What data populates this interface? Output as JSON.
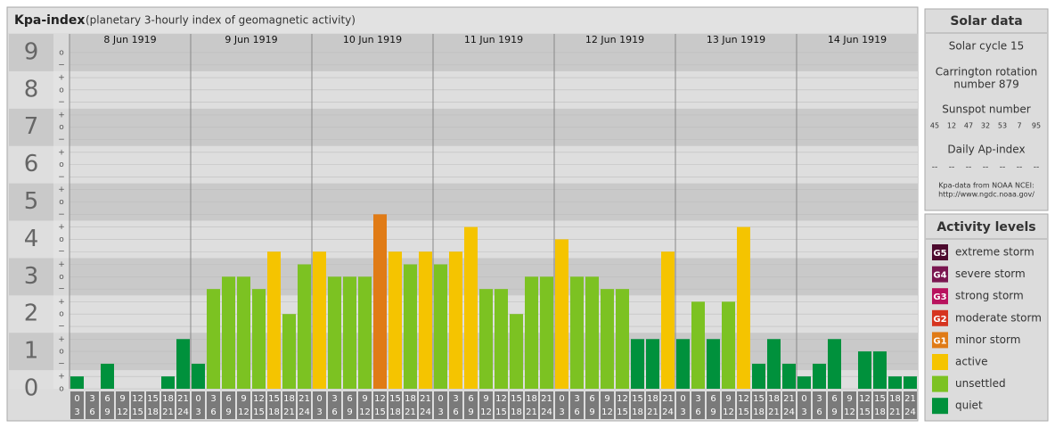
{
  "chart_data": {
    "type": "bar",
    "title": "Kpa-index",
    "subtitle": "(planetary 3-hourly index of geomagnetic activity)",
    "ylim": [
      0,
      9.5
    ],
    "yticks": [
      0,
      1,
      2,
      3,
      4,
      5,
      6,
      7,
      8,
      9
    ],
    "minor_yticks": [
      {
        "value": 0,
        "label": "o"
      },
      {
        "value": 0.33,
        "label": "+"
      },
      {
        "value": 0.67,
        "label": "−"
      },
      {
        "value": 1,
        "label": "o"
      },
      {
        "value": 1.33,
        "label": "+"
      },
      {
        "value": 1.67,
        "label": "−"
      },
      {
        "value": 2,
        "label": "o"
      },
      {
        "value": 2.33,
        "label": "+"
      },
      {
        "value": 2.67,
        "label": "−"
      },
      {
        "value": 3,
        "label": "o"
      },
      {
        "value": 3.33,
        "label": "+"
      },
      {
        "value": 3.67,
        "label": "−"
      },
      {
        "value": 4,
        "label": "o"
      },
      {
        "value": 4.33,
        "label": "+"
      },
      {
        "value": 4.67,
        "label": "−"
      },
      {
        "value": 5,
        "label": "o"
      },
      {
        "value": 5.33,
        "label": "+"
      },
      {
        "value": 5.67,
        "label": "−"
      },
      {
        "value": 6,
        "label": "o"
      },
      {
        "value": 6.33,
        "label": "+"
      },
      {
        "value": 6.67,
        "label": "−"
      },
      {
        "value": 7,
        "label": "o"
      },
      {
        "value": 7.33,
        "label": "+"
      },
      {
        "value": 7.67,
        "label": "−"
      },
      {
        "value": 8,
        "label": "o"
      },
      {
        "value": 8.33,
        "label": "+"
      },
      {
        "value": 8.67,
        "label": "−"
      },
      {
        "value": 9,
        "label": "o"
      }
    ],
    "intervals": [
      [
        0,
        3
      ],
      [
        3,
        6
      ],
      [
        6,
        9
      ],
      [
        9,
        12
      ],
      [
        12,
        15
      ],
      [
        15,
        18
      ],
      [
        18,
        21
      ],
      [
        21,
        24
      ]
    ],
    "days": [
      {
        "date": "8 Jun 1919",
        "values": [
          0.33,
          0,
          0.67,
          0,
          0,
          0,
          0.33,
          1.33
        ],
        "colors": [
          "#00913c",
          "#00913c",
          "#00913c",
          "#00913c",
          "#00913c",
          "#00913c",
          "#00913c",
          "#00913c"
        ]
      },
      {
        "date": "9 Jun 1919",
        "values": [
          0.67,
          2.67,
          3,
          3,
          2.67,
          3.67,
          2,
          3.33
        ],
        "colors": [
          "#00913c",
          "#7cc222",
          "#7cc222",
          "#7cc222",
          "#7cc222",
          "#f5c400",
          "#7cc222",
          "#7cc222"
        ]
      },
      {
        "date": "10 Jun 1919",
        "values": [
          3.67,
          3,
          3,
          3,
          4.67,
          3.67,
          3.33,
          3.67
        ],
        "colors": [
          "#f5c400",
          "#7cc222",
          "#7cc222",
          "#7cc222",
          "#e07b16",
          "#f5c400",
          "#7cc222",
          "#f5c400"
        ]
      },
      {
        "date": "11 Jun 1919",
        "values": [
          3.33,
          3.67,
          4.33,
          2.67,
          2.67,
          2,
          3,
          3
        ],
        "colors": [
          "#7cc222",
          "#f5c400",
          "#f5c400",
          "#7cc222",
          "#7cc222",
          "#7cc222",
          "#7cc222",
          "#7cc222"
        ]
      },
      {
        "date": "12 Jun 1919",
        "values": [
          4,
          3,
          3,
          2.67,
          2.67,
          1.33,
          1.33,
          3.67
        ],
        "colors": [
          "#f5c400",
          "#7cc222",
          "#7cc222",
          "#7cc222",
          "#7cc222",
          "#00913c",
          "#00913c",
          "#f5c400"
        ]
      },
      {
        "date": "13 Jun 1919",
        "values": [
          1.33,
          2.33,
          1.33,
          2.33,
          4.33,
          0.67,
          1.33,
          0.67
        ],
        "colors": [
          "#00913c",
          "#7cc222",
          "#00913c",
          "#7cc222",
          "#f5c400",
          "#00913c",
          "#00913c",
          "#00913c"
        ]
      },
      {
        "date": "14 Jun 1919",
        "values": [
          0.33,
          0.67,
          1.33,
          0,
          1,
          1,
          0.33,
          0.33
        ],
        "colors": [
          "#00913c",
          "#00913c",
          "#00913c",
          "#00913c",
          "#00913c",
          "#00913c",
          "#00913c",
          "#00913c"
        ]
      }
    ]
  },
  "solar_data": {
    "title": "Solar data",
    "cycle": "Solar cycle 15",
    "carrington": [
      "Carrington rotation",
      "number 879"
    ],
    "sunspot_label": "Sunspot number",
    "sunspots": [
      45,
      12,
      47,
      32,
      53,
      7,
      95
    ],
    "ap_label": "Daily Ap-index",
    "ap": [
      "--",
      "--",
      "--",
      "--",
      "--",
      "--",
      "--"
    ],
    "source": [
      "Kpa-data from NOAA NCEI:",
      "http://www.ngdc.noaa.gov/"
    ]
  },
  "activity_levels": {
    "title": "Activity levels",
    "levels": [
      {
        "badge": "G5",
        "name": "extreme storm",
        "color": "#4d0a2e"
      },
      {
        "badge": "G4",
        "name": "severe storm",
        "color": "#7a1650"
      },
      {
        "badge": "G3",
        "name": "strong storm",
        "color": "#b8125e"
      },
      {
        "badge": "G2",
        "name": "moderate storm",
        "color": "#d6341f"
      },
      {
        "badge": "G1",
        "name": "minor storm",
        "color": "#e07b16"
      },
      {
        "name": "active",
        "color": "#f5c400"
      },
      {
        "name": "unsettled",
        "color": "#7cc222"
      },
      {
        "name": "quiet",
        "color": "#00913c"
      }
    ]
  }
}
